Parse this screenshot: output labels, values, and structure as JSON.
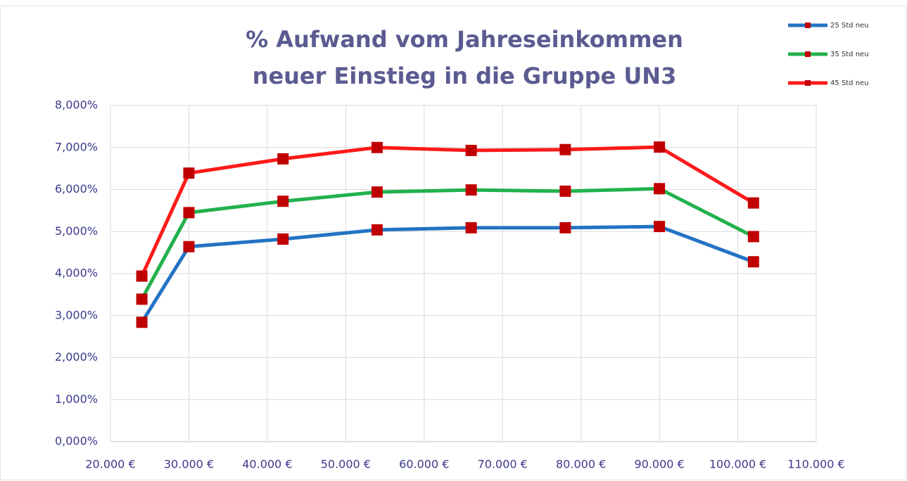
{
  "chart_data": {
    "type": "line",
    "title": [
      "% Aufwand vom Jahreseinkommen",
      "neuer Einstieg in die Gruppe UN3"
    ],
    "x": [
      24000,
      30000,
      42000,
      54000,
      66000,
      78000,
      90000,
      102000
    ],
    "series": [
      {
        "name": "25 Std neu",
        "color": "#2373c4",
        "values": [
          2.84,
          4.64,
          4.82,
          5.04,
          5.09,
          5.09,
          5.12,
          4.28
        ]
      },
      {
        "name": "35 Std neu",
        "color": "#22b14c",
        "values": [
          3.39,
          5.45,
          5.72,
          5.94,
          5.99,
          5.96,
          6.02,
          4.88
        ]
      },
      {
        "name": "45 Std neu",
        "color": "#ff1a1a",
        "values": [
          3.94,
          6.39,
          6.73,
          7.0,
          6.93,
          6.95,
          7.01,
          5.68
        ]
      }
    ],
    "marker_color": "#c00000",
    "xlim": [
      20000,
      110000
    ],
    "xticks": [
      {
        "value": 20000,
        "label": "20.000 €"
      },
      {
        "value": 30000,
        "label": "30.000 €"
      },
      {
        "value": 40000,
        "label": "40.000 €"
      },
      {
        "value": 50000,
        "label": "50.000 €"
      },
      {
        "value": 60000,
        "label": "60.000 €"
      },
      {
        "value": 70000,
        "label": "70.000 €"
      },
      {
        "value": 80000,
        "label": "80.000 €"
      },
      {
        "value": 90000,
        "label": "90.000 €"
      },
      {
        "value": 100000,
        "label": "100.000 €"
      },
      {
        "value": 110000,
        "label": "110.000 €"
      }
    ],
    "ylim": [
      0,
      8
    ],
    "yticks": [
      {
        "value": 0,
        "label": "0,000%"
      },
      {
        "value": 1,
        "label": "1,000%"
      },
      {
        "value": 2,
        "label": "2,000%"
      },
      {
        "value": 3,
        "label": "3,000%"
      },
      {
        "value": 4,
        "label": "4,000%"
      },
      {
        "value": 5,
        "label": "5,000%"
      },
      {
        "value": 6,
        "label": "6,000%"
      },
      {
        "value": 7,
        "label": "7,000%"
      },
      {
        "value": 8,
        "label": "8,000%"
      }
    ],
    "grid": true,
    "legend": "top-right"
  }
}
